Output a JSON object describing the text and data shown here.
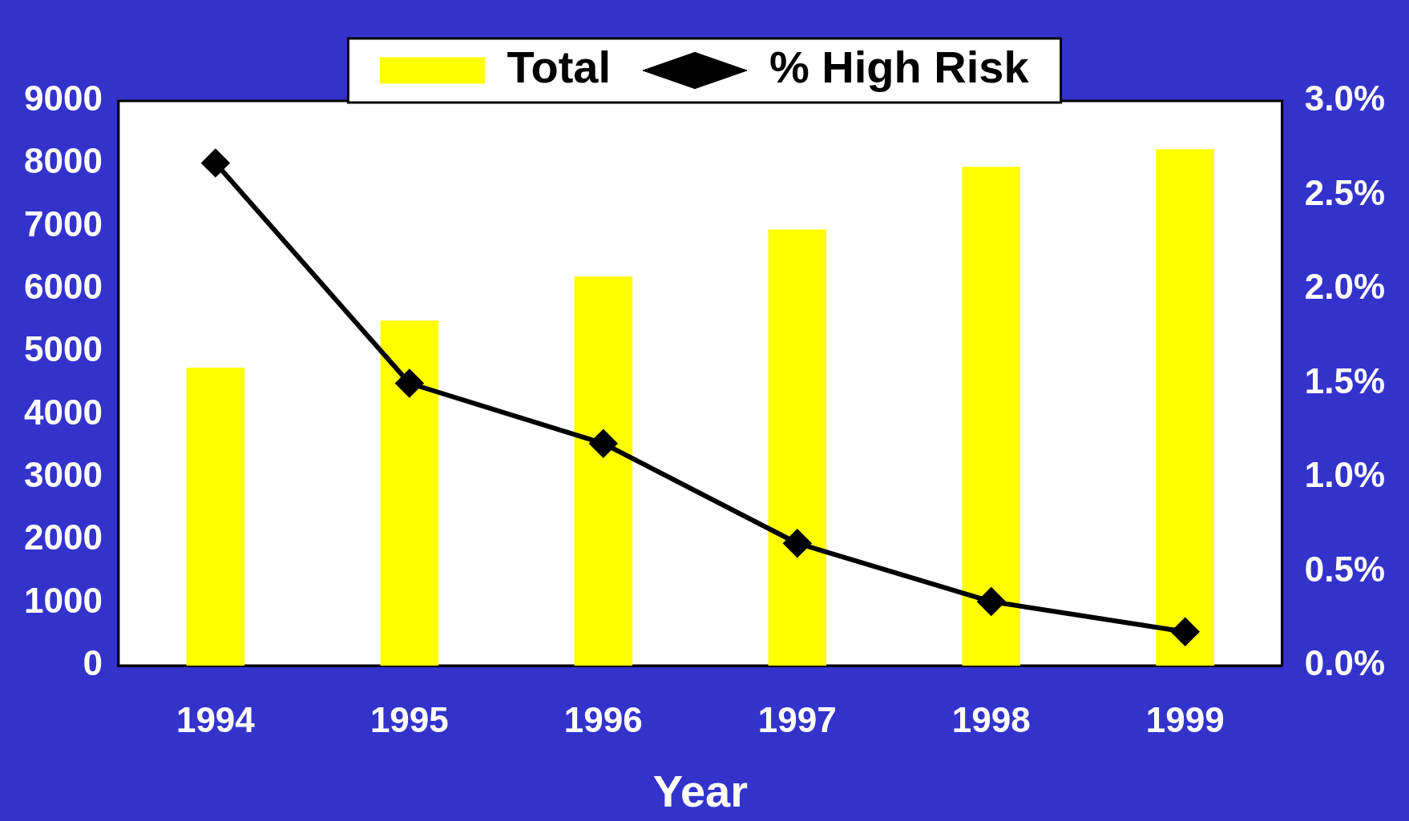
{
  "chart_data": {
    "type": "bar",
    "xlabel": "Year",
    "categories": [
      "1994",
      "1995",
      "1996",
      "1997",
      "1998",
      "1999"
    ],
    "series": [
      {
        "name": "Total",
        "color": "#ffff00",
        "values": [
          4750,
          5500,
          6200,
          6950,
          7950,
          8230
        ]
      },
      {
        "name": "% High Risk",
        "type": "line",
        "axis": "y2",
        "color": "#000000",
        "values": [
          2.67,
          1.5,
          1.18,
          0.65,
          0.34,
          0.18
        ]
      }
    ],
    "ylim": [
      0,
      9000
    ],
    "yticks": [
      0,
      1000,
      2000,
      3000,
      4000,
      5000,
      6000,
      7000,
      8000,
      9000
    ],
    "y2lim": [
      0,
      3
    ],
    "y2ticks": [
      {
        "value": 0,
        "label": "0.0%"
      },
      {
        "value": 0.5,
        "label": "0.5%"
      },
      {
        "value": 1,
        "label": "1.0%"
      },
      {
        "value": 1.5,
        "label": "1.5%"
      },
      {
        "value": 2,
        "label": "2.0%"
      },
      {
        "value": 2.5,
        "label": "2.5%"
      },
      {
        "value": 3,
        "label": "3.0%"
      }
    ],
    "legend": "top",
    "marker": "diamond",
    "grid": false
  }
}
